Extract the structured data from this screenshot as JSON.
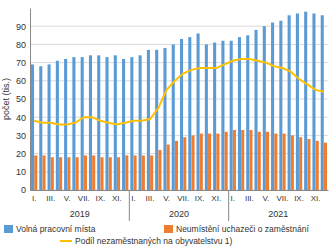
{
  "chart_data": {
    "type": "bar",
    "y_label": "počet (tis.)",
    "categories": [
      "I.",
      null,
      "III.",
      null,
      "V.",
      null,
      "VII.",
      null,
      "IX.",
      null,
      "XI.",
      null,
      "I.",
      null,
      "III.",
      null,
      "V.",
      null,
      "VII.",
      null,
      "IX.",
      null,
      "XI.",
      null,
      "I.",
      null,
      "III.",
      null,
      "V.",
      null,
      "VII.",
      null,
      "IX.",
      null,
      "XI.",
      null
    ],
    "year_labels": [
      "2019",
      "2020",
      "2021"
    ],
    "series": [
      {
        "name": "Volná pracovní místa",
        "type": "bar",
        "color": "#5b9bd5",
        "values": [
          69,
          68,
          69,
          71,
          72,
          73,
          73,
          74,
          74,
          73,
          74,
          72,
          73,
          74,
          77,
          77,
          78,
          80,
          83,
          84,
          86,
          80,
          81,
          82,
          82,
          84,
          85,
          88,
          90,
          92,
          93,
          96,
          97,
          98,
          97,
          96
        ]
      },
      {
        "name": "Neumístění uchazeči o zaměstnání",
        "type": "bar",
        "color": "#ed7d31",
        "values": [
          19,
          19,
          18,
          18,
          18,
          18,
          19,
          19,
          18,
          18,
          18,
          19,
          19,
          19,
          19,
          22,
          25,
          27,
          29,
          30,
          31,
          31,
          31,
          32,
          33,
          33,
          33,
          32,
          32,
          31,
          31,
          30,
          29,
          28,
          27,
          26
        ]
      },
      {
        "name": "Podíl nezaměstnaných na obyvatelstvu 1)",
        "type": "line",
        "color": "#ffc000",
        "values": [
          38,
          37,
          37,
          36,
          36,
          37,
          40,
          40,
          38,
          37,
          36,
          37,
          38,
          38,
          39,
          45,
          55,
          60,
          64,
          66,
          67,
          67,
          67,
          69,
          71,
          72,
          72,
          71,
          70,
          68,
          67,
          65,
          61,
          58,
          55,
          54
        ]
      }
    ],
    "ylim": [
      0,
      100
    ],
    "yticks": [
      0,
      10,
      20,
      30,
      40,
      50,
      60,
      70,
      80,
      90
    ],
    "grid": true,
    "legend": "bottom"
  }
}
